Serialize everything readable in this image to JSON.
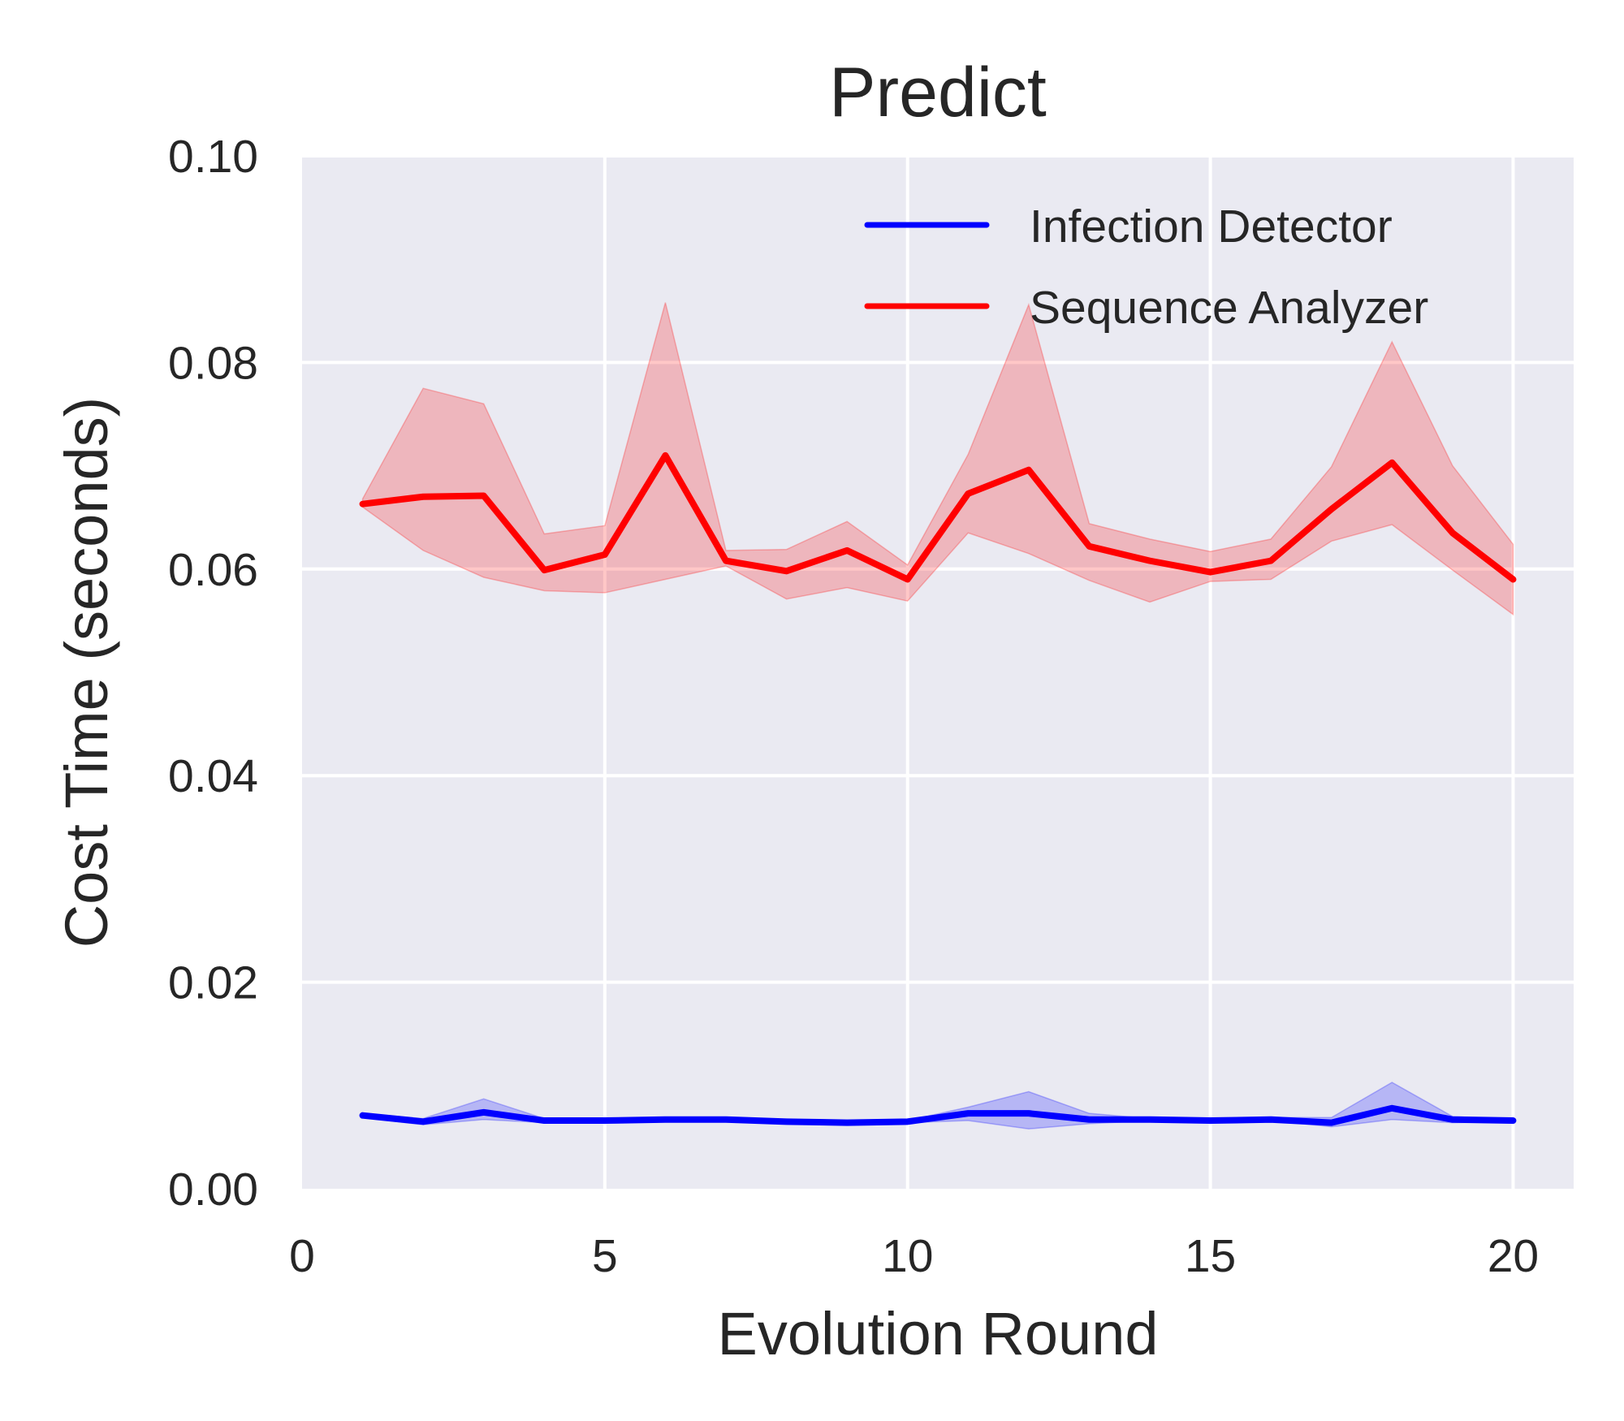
{
  "chart_data": {
    "type": "line",
    "title": "Predict",
    "xlabel": "Evolution Round",
    "ylabel": "Cost Time (seconds)",
    "xlim": [
      0,
      21
    ],
    "ylim": [
      0,
      0.1
    ],
    "x_ticks": [
      "0",
      "5",
      "10",
      "15",
      "20"
    ],
    "y_ticks": [
      "0.00",
      "0.02",
      "0.04",
      "0.06",
      "0.08",
      "0.10"
    ],
    "grid": true,
    "legend_position": "top-right",
    "x": [
      1,
      2,
      3,
      4,
      5,
      6,
      7,
      8,
      9,
      10,
      11,
      12,
      13,
      14,
      15,
      16,
      17,
      18,
      19,
      20
    ],
    "series": [
      {
        "name": "Infection Detector",
        "color": "#0000ff",
        "values": [
          0.0071,
          0.0065,
          0.0074,
          0.0066,
          0.0066,
          0.0067,
          0.0067,
          0.0065,
          0.0064,
          0.0065,
          0.0073,
          0.0073,
          0.0067,
          0.0067,
          0.0066,
          0.0067,
          0.0064,
          0.0078,
          0.0067,
          0.0066
        ],
        "upper": [
          0.0073,
          0.0068,
          0.0087,
          0.0068,
          0.0067,
          0.0069,
          0.0068,
          0.0066,
          0.0065,
          0.0066,
          0.0079,
          0.0094,
          0.0073,
          0.0068,
          0.0068,
          0.0069,
          0.0069,
          0.0103,
          0.007,
          0.0067
        ],
        "lower": [
          0.0069,
          0.0062,
          0.0067,
          0.0064,
          0.0065,
          0.0065,
          0.0066,
          0.0064,
          0.0063,
          0.0064,
          0.0066,
          0.0058,
          0.0063,
          0.0066,
          0.0065,
          0.0066,
          0.006,
          0.0067,
          0.0064,
          0.0065
        ]
      },
      {
        "name": "Sequence Analyzer",
        "color": "#ff0000",
        "values": [
          0.0663,
          0.067,
          0.0671,
          0.0599,
          0.0614,
          0.071,
          0.0608,
          0.0598,
          0.0618,
          0.059,
          0.0673,
          0.0696,
          0.0622,
          0.0608,
          0.0597,
          0.0608,
          0.0658,
          0.0703,
          0.0635,
          0.059
        ],
        "upper": [
          0.0668,
          0.0775,
          0.076,
          0.0634,
          0.0642,
          0.0858,
          0.0618,
          0.0619,
          0.0646,
          0.0604,
          0.0711,
          0.0856,
          0.0644,
          0.0629,
          0.0617,
          0.0629,
          0.0699,
          0.082,
          0.07,
          0.0624
        ],
        "lower": [
          0.066,
          0.0618,
          0.0592,
          0.0579,
          0.0577,
          0.059,
          0.0603,
          0.0571,
          0.0582,
          0.0569,
          0.0635,
          0.0615,
          0.0589,
          0.0568,
          0.0588,
          0.059,
          0.0627,
          0.0643,
          0.0599,
          0.0556
        ]
      }
    ]
  }
}
